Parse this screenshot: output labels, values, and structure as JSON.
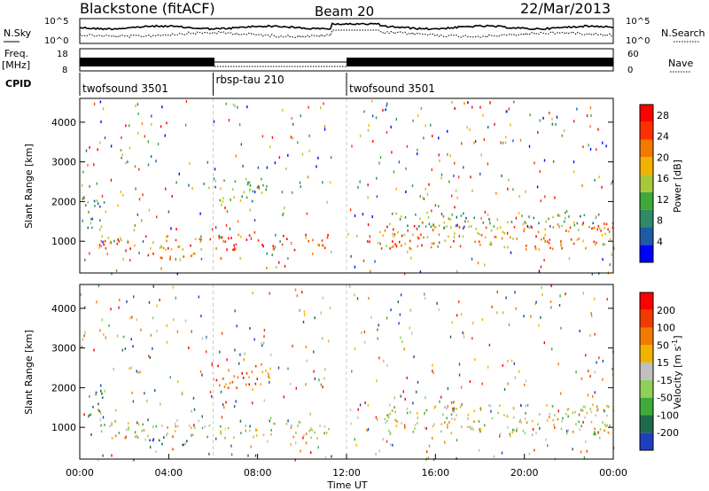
{
  "header": {
    "station": "Blackstone (fitACF)",
    "beam": "Beam 20",
    "date": "22/Mar/2013"
  },
  "left_labels": {
    "nsky": "N.Sky",
    "freq": "Freq.",
    "freq_unit": "[MHz]",
    "cpid": "CPID"
  },
  "right_labels": {
    "nsearch": "N.Search",
    "nave": "Nave"
  },
  "noise_panel": {
    "left_ticks": [
      "10^5",
      "10^0"
    ],
    "right_ticks": [
      "10^5",
      "10^0"
    ]
  },
  "freq_panel": {
    "left_ticks": [
      "18",
      "8"
    ],
    "right_ticks": [
      "60",
      "0"
    ]
  },
  "cpid_segments": [
    {
      "label": "twofsound 3501",
      "start": 0,
      "end": 6
    },
    {
      "label": "rbsp-tau 210",
      "start": 6,
      "end": 12
    },
    {
      "label": "twofsound 3501",
      "start": 12,
      "end": 24
    }
  ],
  "chart_data": [
    {
      "type": "heatmap",
      "name": "power",
      "xlabel": "",
      "ylabel": "Slant Range [km]",
      "xlim": [
        0,
        24
      ],
      "ylim": [
        200,
        4600
      ],
      "yticks": [
        1000,
        2000,
        3000,
        4000
      ],
      "colorbar": {
        "label": "Power [dB]",
        "range": [
          0,
          30
        ],
        "ticks": [
          4,
          8,
          12,
          16,
          20,
          24,
          28
        ],
        "colors": [
          "#0000ff",
          "#1f5aa6",
          "#2f8a6a",
          "#3fa93a",
          "#a6c83a",
          "#f2b300",
          "#f27a00",
          "#ff3000",
          "#ff0000"
        ]
      },
      "regions": [
        {
          "t0": 0.1,
          "t1": 1.1,
          "r0": 1300,
          "r1": 2100,
          "level": 0.35
        },
        {
          "t0": 0.9,
          "t1": 2.2,
          "r0": 1000,
          "r1": 1150,
          "level": 0.45
        },
        {
          "t0": 0.8,
          "t1": 6.0,
          "r0": 820,
          "r1": 1180,
          "level": 0.75
        },
        {
          "t0": 3.0,
          "t1": 5.2,
          "r0": 560,
          "r1": 950,
          "level": 0.75
        },
        {
          "t0": 6.0,
          "t1": 11.3,
          "r0": 800,
          "r1": 1200,
          "level": 0.85
        },
        {
          "t0": 6.0,
          "t1": 8.6,
          "r0": 2000,
          "r1": 2650,
          "level": 0.4
        },
        {
          "t0": 1.8,
          "t1": 2.4,
          "r0": 3000,
          "r1": 3350,
          "level": 0.45
        },
        {
          "t0": 12.0,
          "t1": 12.6,
          "r0": 1100,
          "r1": 1300,
          "level": 0.4
        },
        {
          "t0": 13.3,
          "t1": 24.0,
          "r0": 820,
          "r1": 1500,
          "level": 0.7
        },
        {
          "t0": 14.0,
          "t1": 23.5,
          "r0": 1350,
          "r1": 1750,
          "level": 0.4
        }
      ]
    },
    {
      "type": "heatmap",
      "name": "velocity",
      "xlabel": "Time UT",
      "ylabel": "Slant Range [km]",
      "xlim": [
        0,
        24
      ],
      "ylim": [
        200,
        4600
      ],
      "xticks": [
        "00:00",
        "04:00",
        "08:00",
        "12:00",
        "16:00",
        "20:00",
        "00:00"
      ],
      "yticks": [
        1000,
        2000,
        3000,
        4000
      ],
      "colorbar": {
        "label": "Velocity [m s^-1]",
        "ticks": [
          "200",
          "100",
          "50",
          "15",
          "-15",
          "-50",
          "-100",
          "-200"
        ],
        "colors": [
          "#1f3fbf",
          "#1f6a4a",
          "#3faa3a",
          "#8fd05a",
          "#c0c0c0",
          "#f2b300",
          "#f27a00",
          "#f23a00",
          "#ff0000"
        ]
      },
      "regions": [
        {
          "t0": 0.8,
          "t1": 11.3,
          "r0": 750,
          "r1": 1150,
          "level": 0.5
        },
        {
          "t0": 3.0,
          "t1": 5.0,
          "r0": 550,
          "r1": 800,
          "level": 0.05
        },
        {
          "t0": 6.0,
          "t1": 8.6,
          "r0": 2000,
          "r1": 2650,
          "level": 0.75
        },
        {
          "t0": 1.8,
          "t1": 2.4,
          "r0": 3000,
          "r1": 3350,
          "level": 0.15
        },
        {
          "t0": 0.1,
          "t1": 1.0,
          "r0": 1300,
          "r1": 2000,
          "level": 0.2
        },
        {
          "t0": 13.3,
          "t1": 24.0,
          "r0": 820,
          "r1": 1600,
          "level": 0.5
        }
      ]
    }
  ]
}
